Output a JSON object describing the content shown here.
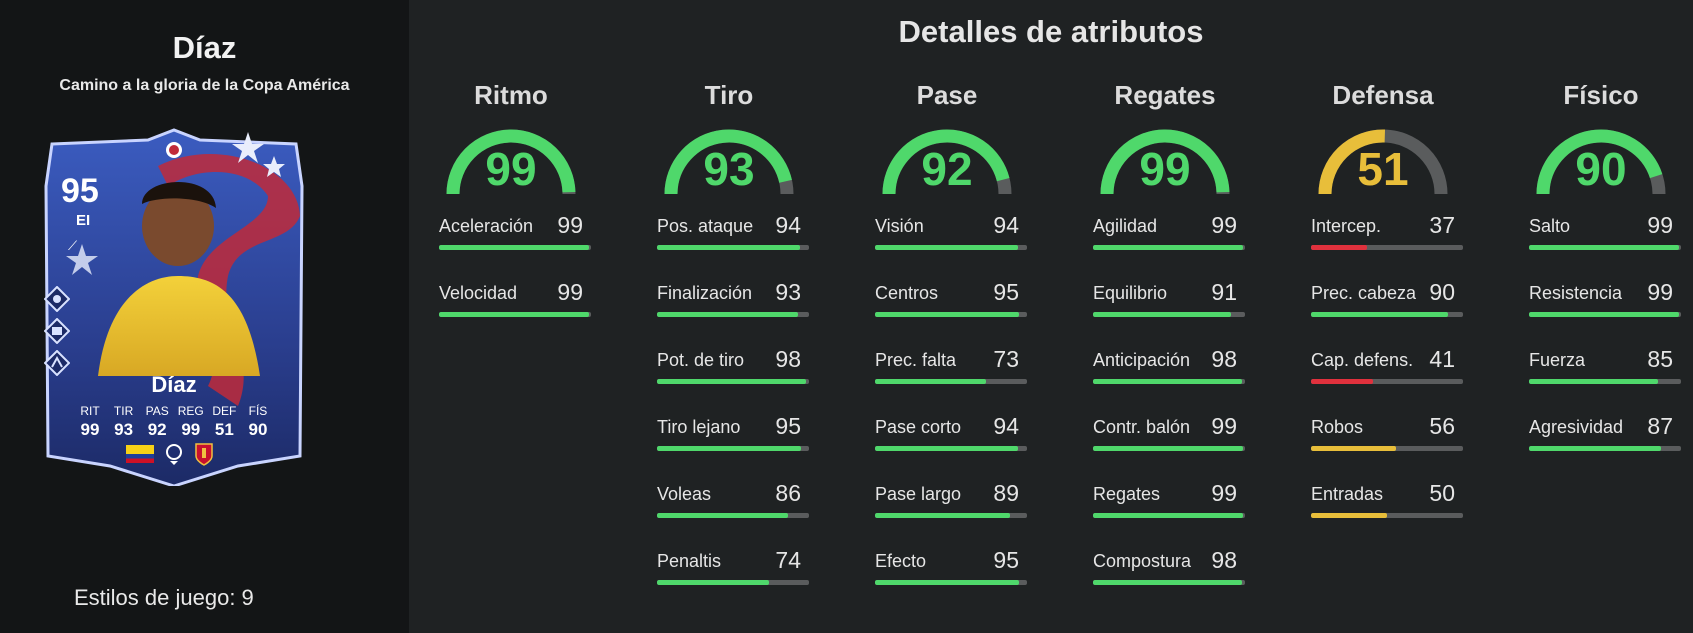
{
  "player": {
    "name": "Díaz",
    "promo": "Camino a la gloria de la Copa América",
    "overall": "95",
    "position": "EI",
    "card_name": "Díaz",
    "card_stats": [
      {
        "label": "RIT",
        "value": "99"
      },
      {
        "label": "TIR",
        "value": "93"
      },
      {
        "label": "PAS",
        "value": "92"
      },
      {
        "label": "REG",
        "value": "99"
      },
      {
        "label": "DEF",
        "value": "51"
      },
      {
        "label": "FÍS",
        "value": "90"
      }
    ],
    "playstyles": "Estilos de juego: 9"
  },
  "title": "Detalles de atributos",
  "colors": {
    "high": "#4fd86b",
    "mid": "#e8be3a",
    "low": "#e0313d",
    "track": "#5a5c5d"
  },
  "categories": [
    {
      "name": "Ritmo",
      "value": 99,
      "attributes": [
        {
          "label": "Aceleración",
          "value": 99
        },
        {
          "label": "Velocidad",
          "value": 99
        }
      ]
    },
    {
      "name": "Tiro",
      "value": 93,
      "attributes": [
        {
          "label": "Pos. ataque",
          "value": 94
        },
        {
          "label": "Finalización",
          "value": 93
        },
        {
          "label": "Pot. de tiro",
          "value": 98
        },
        {
          "label": "Tiro lejano",
          "value": 95
        },
        {
          "label": "Voleas",
          "value": 86
        },
        {
          "label": "Penaltis",
          "value": 74
        }
      ]
    },
    {
      "name": "Pase",
      "value": 92,
      "attributes": [
        {
          "label": "Visión",
          "value": 94
        },
        {
          "label": "Centros",
          "value": 95
        },
        {
          "label": "Prec. falta",
          "value": 73
        },
        {
          "label": "Pase corto",
          "value": 94
        },
        {
          "label": "Pase largo",
          "value": 89
        },
        {
          "label": "Efecto",
          "value": 95
        }
      ]
    },
    {
      "name": "Regates",
      "value": 99,
      "attributes": [
        {
          "label": "Agilidad",
          "value": 99
        },
        {
          "label": "Equilibrio",
          "value": 91
        },
        {
          "label": "Anticipación",
          "value": 98
        },
        {
          "label": "Contr. balón",
          "value": 99
        },
        {
          "label": "Regates",
          "value": 99
        },
        {
          "label": "Compostura",
          "value": 98
        }
      ]
    },
    {
      "name": "Defensa",
      "value": 51,
      "attributes": [
        {
          "label": "Intercep.",
          "value": 37
        },
        {
          "label": "Prec. cabeza",
          "value": 90
        },
        {
          "label": "Cap. defens.",
          "value": 41
        },
        {
          "label": "Robos",
          "value": 56
        },
        {
          "label": "Entradas",
          "value": 50
        }
      ]
    },
    {
      "name": "Físico",
      "value": 90,
      "attributes": [
        {
          "label": "Salto",
          "value": 99
        },
        {
          "label": "Resistencia",
          "value": 99
        },
        {
          "label": "Fuerza",
          "value": 85
        },
        {
          "label": "Agresividad",
          "value": 87
        }
      ]
    }
  ]
}
